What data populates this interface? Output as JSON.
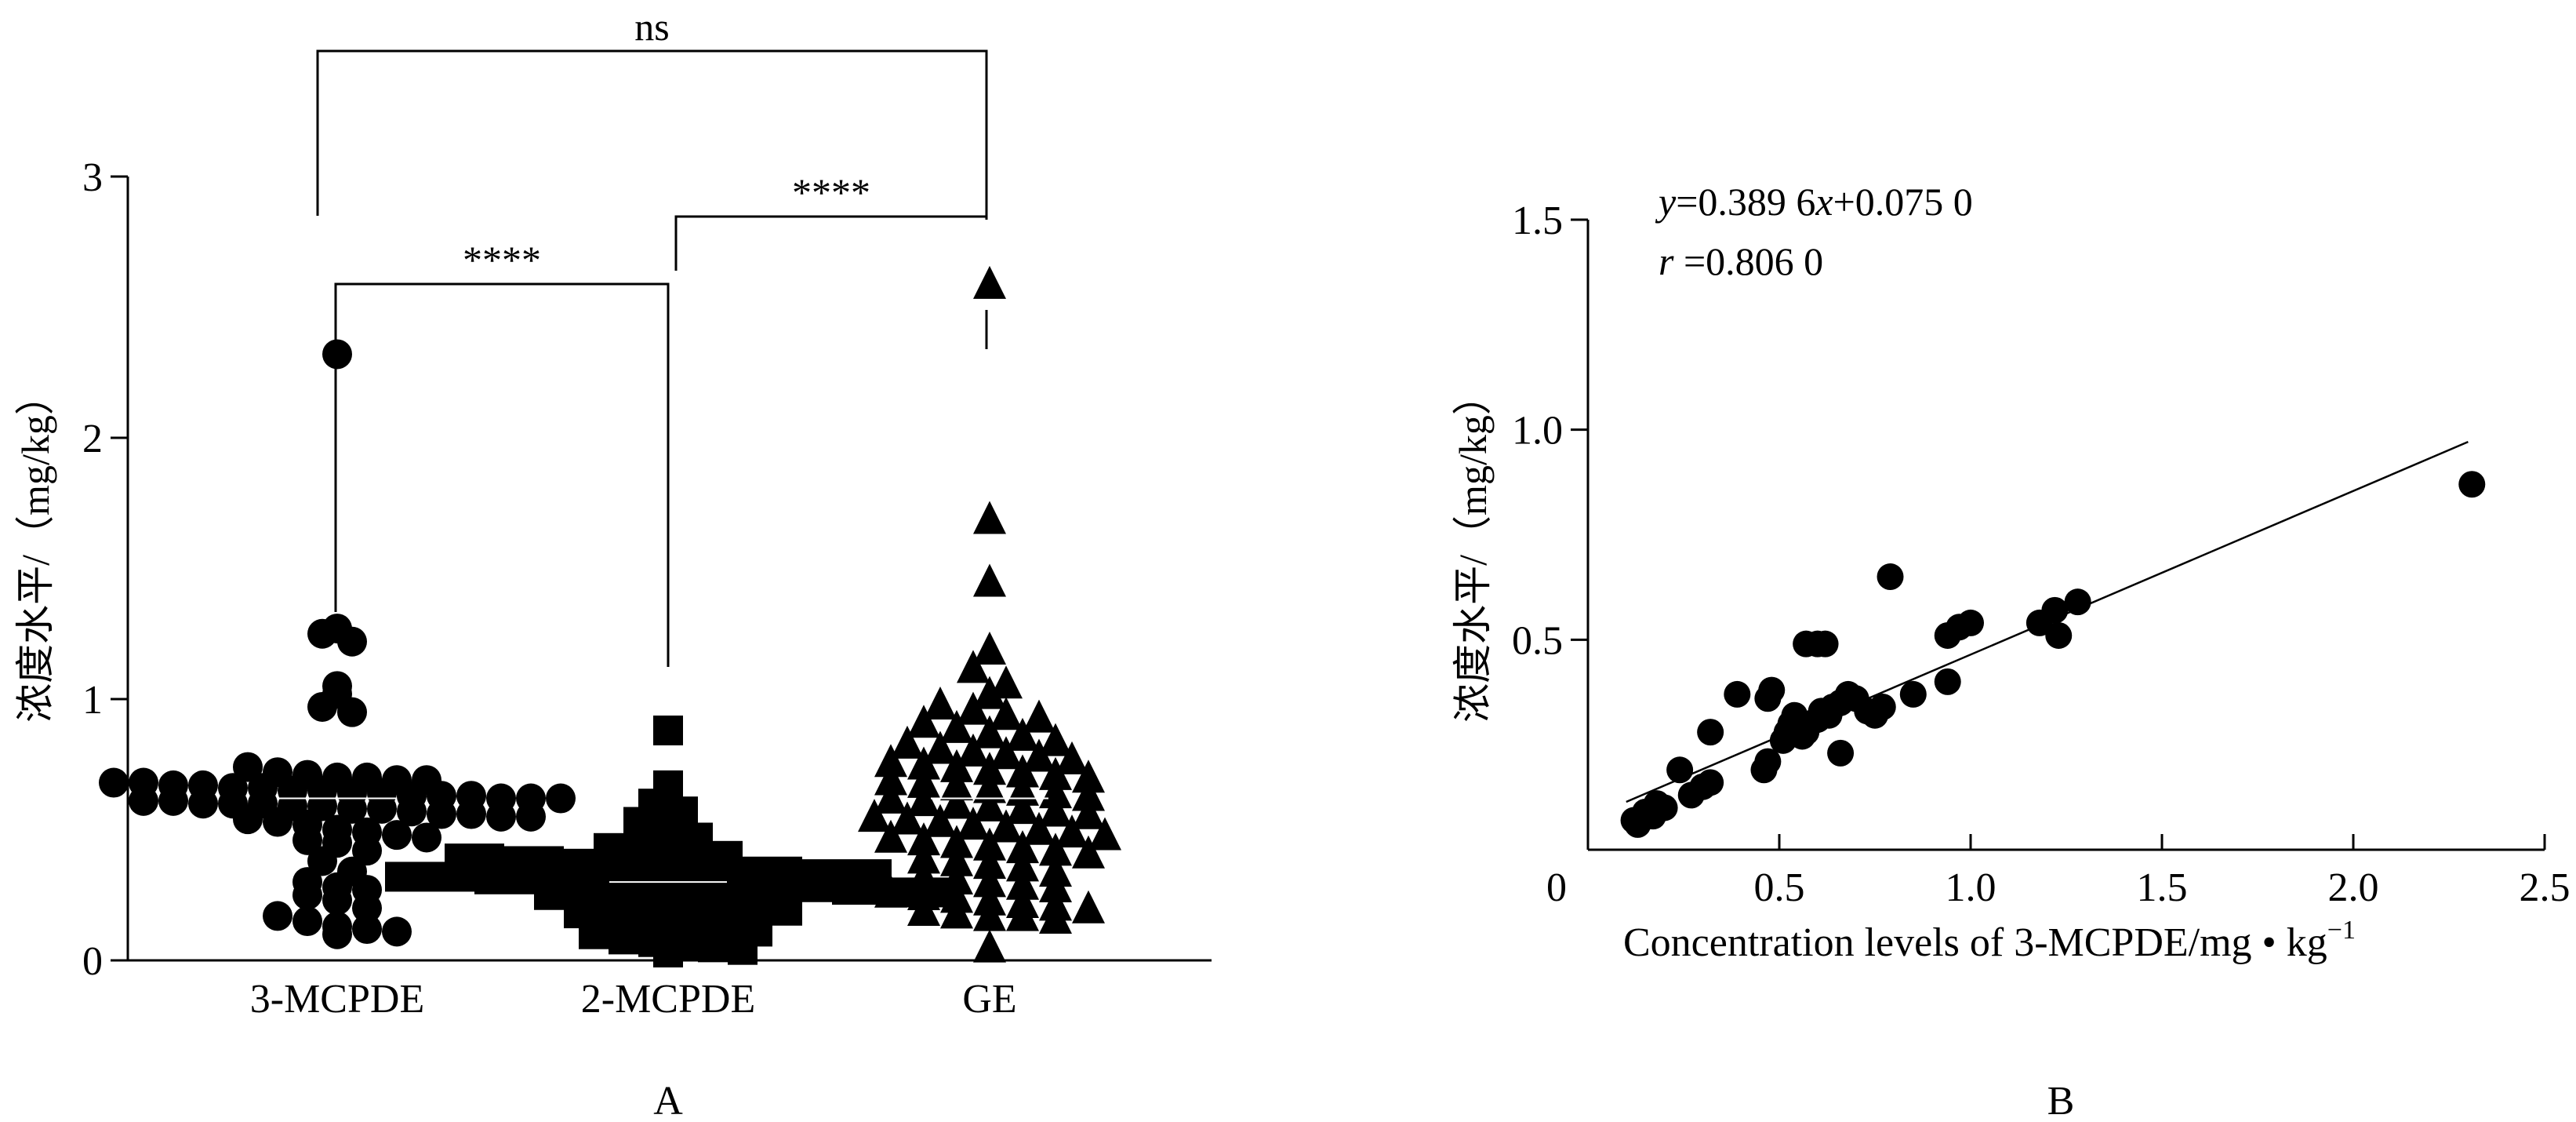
{
  "figure": {
    "panel_a_label": "A",
    "panel_b_label": "B"
  },
  "chart_data": [
    {
      "type": "scatter",
      "subtype": "categorical dot plot",
      "ylabel": "浓度水平/（mg/kg）",
      "xlabel": "",
      "categories": [
        "3-MCPDE",
        "2-MCPDE",
        "GE"
      ],
      "ylim": [
        0,
        3
      ],
      "yticks": [
        "0",
        "1",
        "2",
        "3"
      ],
      "series": [
        {
          "category": "3-MCPDE",
          "marker": "circle",
          "mean": 0.62,
          "values": [
            2.32,
            1.27,
            1.25,
            1.22,
            1.05,
            1.02,
            0.97,
            0.95,
            0.74,
            0.72,
            0.71,
            0.7,
            0.7,
            0.69,
            0.69,
            0.68,
            0.68,
            0.67,
            0.67,
            0.66,
            0.66,
            0.65,
            0.65,
            0.64,
            0.64,
            0.63,
            0.63,
            0.63,
            0.62,
            0.62,
            0.62,
            0.61,
            0.61,
            0.6,
            0.6,
            0.6,
            0.59,
            0.59,
            0.58,
            0.58,
            0.57,
            0.56,
            0.56,
            0.55,
            0.55,
            0.54,
            0.53,
            0.52,
            0.5,
            0.49,
            0.48,
            0.47,
            0.46,
            0.45,
            0.42,
            0.38,
            0.34,
            0.3,
            0.28,
            0.27,
            0.25,
            0.23,
            0.2,
            0.17,
            0.15,
            0.13,
            0.12,
            0.11,
            0.1
          ]
        },
        {
          "category": "2-MCPDE",
          "marker": "square",
          "mean": 0.3,
          "values": [
            0.88,
            0.67,
            0.6,
            0.57,
            0.53,
            0.5,
            0.47,
            0.43,
            0.42,
            0.41,
            0.4,
            0.4,
            0.39,
            0.39,
            0.38,
            0.38,
            0.37,
            0.37,
            0.36,
            0.36,
            0.35,
            0.35,
            0.34,
            0.34,
            0.33,
            0.33,
            0.33,
            0.32,
            0.32,
            0.32,
            0.31,
            0.31,
            0.31,
            0.3,
            0.3,
            0.3,
            0.29,
            0.29,
            0.29,
            0.28,
            0.28,
            0.28,
            0.27,
            0.27,
            0.26,
            0.26,
            0.25,
            0.25,
            0.24,
            0.24,
            0.23,
            0.22,
            0.21,
            0.2,
            0.19,
            0.18,
            0.17,
            0.15,
            0.14,
            0.13,
            0.12,
            0.11,
            0.1,
            0.08,
            0.07,
            0.06,
            0.05,
            0.04,
            0.03
          ]
        },
        {
          "category": "GE",
          "marker": "triangle",
          "mean": 0.62,
          "values": [
            2.58,
            1.68,
            1.44,
            1.18,
            1.11,
            1.05,
            1.01,
            0.97,
            0.95,
            0.93,
            0.92,
            0.9,
            0.88,
            0.86,
            0.85,
            0.83,
            0.82,
            0.8,
            0.79,
            0.78,
            0.77,
            0.76,
            0.75,
            0.74,
            0.73,
            0.72,
            0.71,
            0.7,
            0.69,
            0.68,
            0.67,
            0.66,
            0.65,
            0.64,
            0.63,
            0.62,
            0.61,
            0.6,
            0.59,
            0.58,
            0.57,
            0.56,
            0.55,
            0.54,
            0.53,
            0.52,
            0.51,
            0.5,
            0.49,
            0.48,
            0.47,
            0.46,
            0.45,
            0.44,
            0.43,
            0.42,
            0.41,
            0.4,
            0.38,
            0.37,
            0.36,
            0.35,
            0.33,
            0.31,
            0.3,
            0.29,
            0.28,
            0.27,
            0.25,
            0.24,
            0.23,
            0.22,
            0.21,
            0.2,
            0.19,
            0.18,
            0.17,
            0.16,
            0.16,
            0.15,
            0.04
          ]
        }
      ],
      "significance": [
        {
          "from": "3-MCPDE",
          "to": "GE",
          "label": "ns"
        },
        {
          "from": "3-MCPDE",
          "to": "2-MCPDE",
          "label": "****"
        },
        {
          "from": "2-MCPDE",
          "to": "GE",
          "label": "****"
        }
      ]
    },
    {
      "type": "scatter",
      "xlabel": "Concentration levels of 3-MCPDE/mg • kg",
      "xlabel_superscript": "−1",
      "ylabel": "浓度水平/（mg/kg）",
      "xlim": [
        0,
        2.5
      ],
      "ylim": [
        0,
        1.5
      ],
      "xticks": [
        "0",
        "0.5",
        "1.0",
        "1.5",
        "2.0",
        "2.5"
      ],
      "yticks": [
        "0.5",
        "1.0",
        "1.5"
      ],
      "annotation": {
        "eq_y": "y",
        "eq_rest1": "=0.389 6",
        "eq_x": "x",
        "eq_rest2": "+0.075 0",
        "r_sym": "r",
        "r_rest": " =0.806 0"
      },
      "fit": {
        "slope": 0.3896,
        "intercept": 0.075,
        "x_range": [
          0.1,
          2.3
        ]
      },
      "points": [
        [
          2.31,
          0.87
        ],
        [
          0.79,
          0.65
        ],
        [
          1.28,
          0.59
        ],
        [
          1.22,
          0.57
        ],
        [
          1.18,
          0.54
        ],
        [
          1.23,
          0.51
        ],
        [
          1.0,
          0.54
        ],
        [
          0.97,
          0.53
        ],
        [
          0.94,
          0.51
        ],
        [
          0.94,
          0.4
        ],
        [
          0.85,
          0.37
        ],
        [
          0.6,
          0.49
        ],
        [
          0.57,
          0.49
        ],
        [
          0.62,
          0.49
        ],
        [
          0.77,
          0.34
        ],
        [
          0.75,
          0.32
        ],
        [
          0.73,
          0.33
        ],
        [
          0.7,
          0.36
        ],
        [
          0.68,
          0.37
        ],
        [
          0.66,
          0.35
        ],
        [
          0.64,
          0.34
        ],
        [
          0.63,
          0.32
        ],
        [
          0.61,
          0.33
        ],
        [
          0.6,
          0.31
        ],
        [
          0.58,
          0.3
        ],
        [
          0.57,
          0.28
        ],
        [
          0.56,
          0.27
        ],
        [
          0.55,
          0.29
        ],
        [
          0.54,
          0.32
        ],
        [
          0.53,
          0.3
        ],
        [
          0.52,
          0.28
        ],
        [
          0.51,
          0.26
        ],
        [
          0.66,
          0.23
        ],
        [
          0.48,
          0.38
        ],
        [
          0.47,
          0.36
        ],
        [
          0.39,
          0.37
        ],
        [
          0.47,
          0.21
        ],
        [
          0.46,
          0.19
        ],
        [
          0.32,
          0.28
        ],
        [
          0.32,
          0.16
        ],
        [
          0.3,
          0.15
        ],
        [
          0.27,
          0.13
        ],
        [
          0.24,
          0.19
        ],
        [
          0.2,
          0.1
        ],
        [
          0.18,
          0.11
        ],
        [
          0.17,
          0.08
        ],
        [
          0.15,
          0.09
        ],
        [
          0.13,
          0.06
        ],
        [
          0.12,
          0.07
        ]
      ]
    }
  ]
}
